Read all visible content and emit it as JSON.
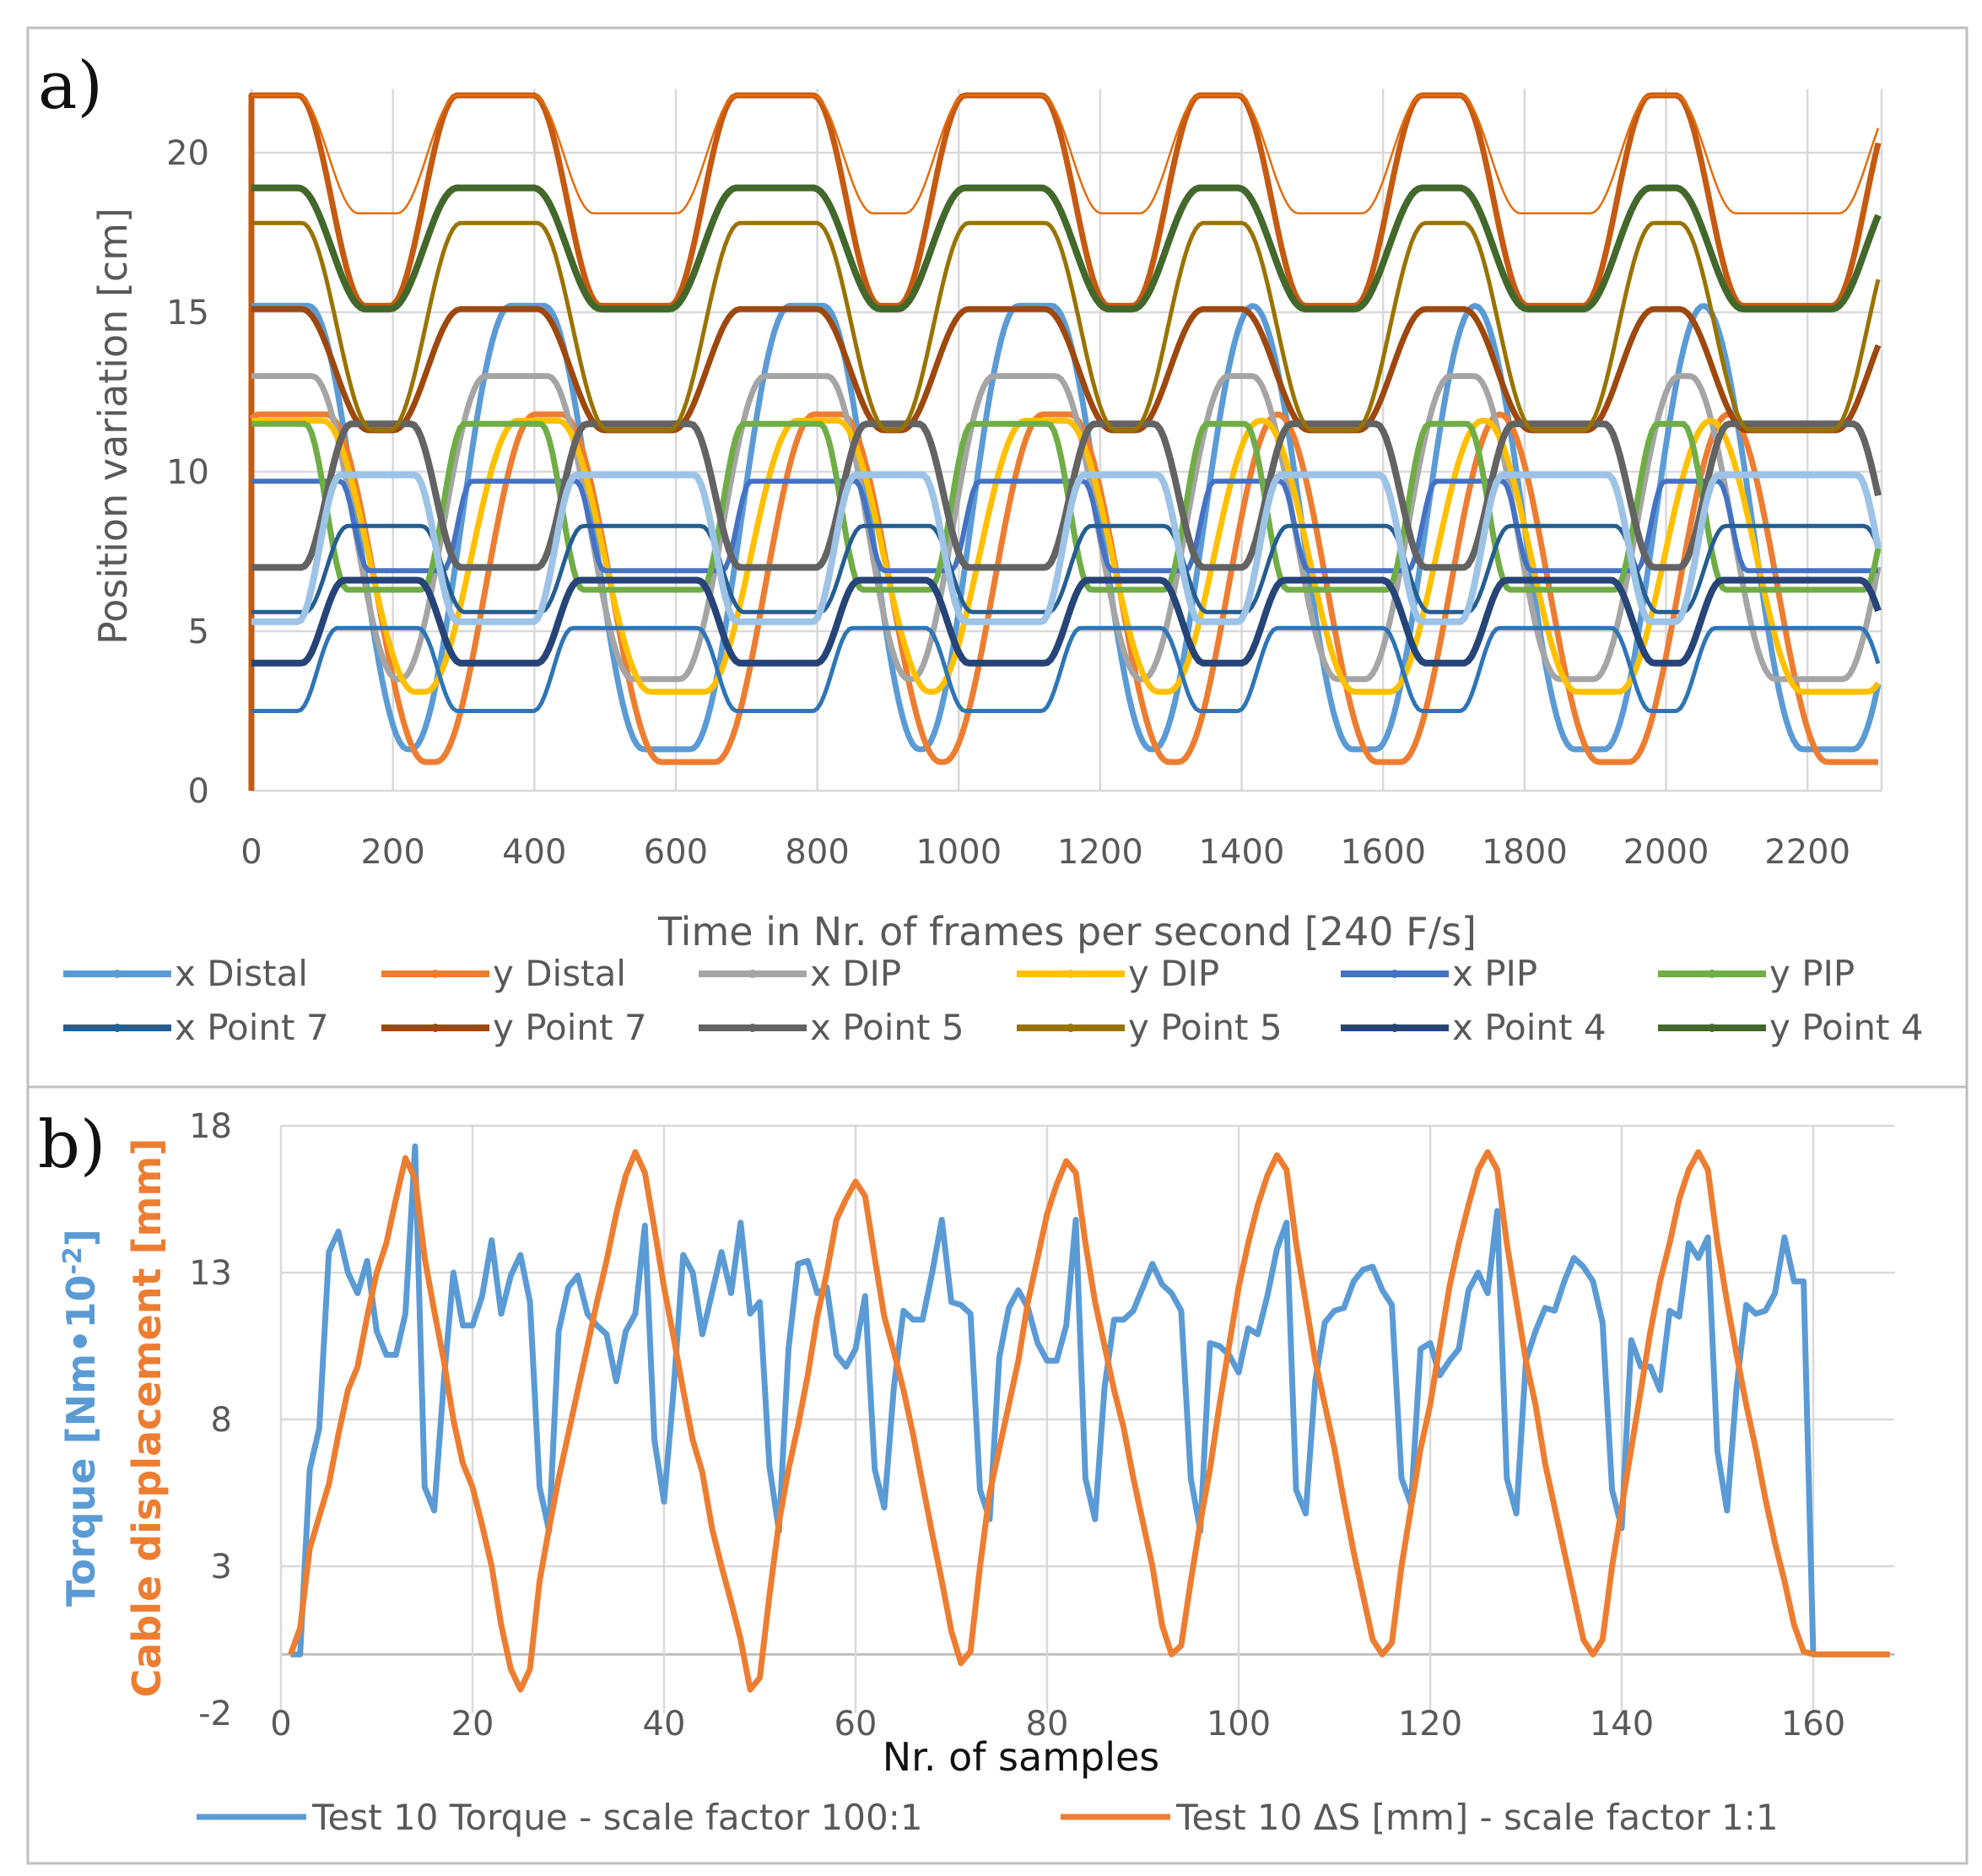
{
  "chart_data": [
    {
      "type": "line",
      "panel_label": "a)",
      "xlabel": "Time in Nr. of frames per second [240 F/s]",
      "ylabel": "Position variation [cm]",
      "xlim": [
        0,
        2300
      ],
      "ylim": [
        0,
        22
      ],
      "xticks": [
        "0",
        "200",
        "400",
        "600",
        "800",
        "1000",
        "1200",
        "1400",
        "1600",
        "1800",
        "2000",
        "2200"
      ],
      "yticks": [
        "0",
        "5",
        "10",
        "15",
        "20"
      ],
      "grid": true,
      "legend_position": "bottom",
      "high_windows_frames": [
        [
          -100,
          66
        ],
        [
          291,
          399
        ],
        [
          686,
          794
        ],
        [
          1009,
          1117
        ],
        [
          1341,
          1395
        ],
        [
          1655,
          1709
        ],
        [
          1978,
          2014
        ],
        [
          2330,
          2450
        ]
      ],
      "series": [
        {
          "name": null,
          "color": "#C55A11",
          "high": 21.8,
          "low": 15.2,
          "phase": "in",
          "shift": 0,
          "ramp": 95,
          "shrink": 0,
          "width": 7,
          "from_zero": true
        },
        {
          "name": null,
          "color": "#E46C0A",
          "high": 21.8,
          "low": 18.1,
          "phase": "in",
          "shift": 0,
          "ramp": 85,
          "shrink": 0,
          "width": 2.5
        },
        {
          "name": "x Distal",
          "color": "#5B9BD5",
          "high": 15.2,
          "low": 1.3,
          "phase": "in",
          "shift": 45,
          "ramp": 140,
          "shrink": 30,
          "width": 7
        },
        {
          "name": "y Distal",
          "color": "#ED7D31",
          "high": 11.8,
          "low": 0.9,
          "phase": "in",
          "shift": 75,
          "ramp": 140,
          "shrink": 35,
          "width": 7
        },
        {
          "name": "x DIP",
          "color": "#A5A5A5",
          "high": 13.0,
          "low": 3.5,
          "phase": "in",
          "shift": 30,
          "ramp": 120,
          "shrink": 10,
          "width": 7
        },
        {
          "name": "y DIP",
          "color": "#FFC000",
          "high": 11.6,
          "low": 3.1,
          "phase": "in",
          "shift": 60,
          "ramp": 130,
          "shrink": 25,
          "width": 7
        },
        {
          "name": "x PIP",
          "color": "#4472C4",
          "high": 9.7,
          "low": 6.9,
          "phase": "in",
          "shift": 40,
          "ramp": 40,
          "shrink": -20,
          "width": 6
        },
        {
          "name": "y PIP",
          "color": "#70AD47",
          "high": 11.5,
          "low": 6.3,
          "phase": "in",
          "shift": 10,
          "ramp": 60,
          "shrink": 0,
          "width": 7
        },
        {
          "name": "x Point 7",
          "color": "#255E91",
          "high": 8.3,
          "low": 5.6,
          "phase": "anti",
          "shift": 10,
          "ramp": 60,
          "shrink": 0,
          "width": 5
        },
        {
          "name": "y Point 7",
          "color": "#9E480E",
          "high": 15.1,
          "low": 11.3,
          "phase": "in",
          "shift": 5,
          "ramp": 95,
          "shrink": 0,
          "width": 7
        },
        {
          "name": "x Point 5",
          "color": "#636363",
          "high": 11.5,
          "low": 7.0,
          "phase": "anti",
          "shift": 5,
          "ramp": 70,
          "shrink": 0,
          "width": 8
        },
        {
          "name": "y Point 5",
          "color": "#997300",
          "high": 17.8,
          "low": 11.3,
          "phase": "in",
          "shift": 5,
          "ramp": 100,
          "shrink": 0,
          "width": 5
        },
        {
          "name": "x Point 4",
          "color": "#264478",
          "high": 6.6,
          "low": 4.0,
          "phase": "anti",
          "shift": 5,
          "ramp": 60,
          "shrink": 0,
          "width": 8
        },
        {
          "name": "y Point 4",
          "color": "#43682B",
          "high": 18.9,
          "low": 15.1,
          "phase": "in",
          "shift": 0,
          "ramp": 95,
          "shrink": 0,
          "width": 8
        },
        {
          "name": null,
          "color": "#9DC3E6",
          "high": 9.9,
          "low": 5.3,
          "phase": "anti",
          "shift": 0,
          "ramp": 60,
          "shrink": 0,
          "width": 8
        },
        {
          "name": null,
          "color": "#2E75B6",
          "high": 5.1,
          "low": 2.5,
          "phase": "anti",
          "shift": 0,
          "ramp": 55,
          "shrink": 0,
          "width": 5
        }
      ],
      "legend": [
        {
          "label": "x Distal",
          "color": "#5B9BD5"
        },
        {
          "label": "y Distal",
          "color": "#ED7D31"
        },
        {
          "label": "x DIP",
          "color": "#A5A5A5"
        },
        {
          "label": "y DIP",
          "color": "#FFC000"
        },
        {
          "label": "x PIP",
          "color": "#4472C4"
        },
        {
          "label": "y PIP",
          "color": "#70AD47"
        },
        {
          "label": "x Point 7",
          "color": "#255E91"
        },
        {
          "label": "y Point 7",
          "color": "#9E480E"
        },
        {
          "label": "x Point 5",
          "color": "#636363"
        },
        {
          "label": "y Point 5",
          "color": "#997300"
        },
        {
          "label": "x Point 4",
          "color": "#264478"
        },
        {
          "label": "y Point 4",
          "color": "#43682B"
        }
      ]
    },
    {
      "type": "line",
      "panel_label": "b)",
      "xlabel": "Nr. of samples",
      "ylabel_torque": "Torque [Nm•10",
      "ylabel_torque_exp": "-2",
      "ylabel_torque_end": "]",
      "ylabel_cable": "Cable displacement [mm]",
      "xlim": [
        0,
        168.5
      ],
      "ylim": [
        -2,
        18
      ],
      "xticks": [
        "0",
        "20",
        "40",
        "60",
        "80",
        "100",
        "120",
        "140",
        "160"
      ],
      "yticks": [
        "-2",
        "3",
        "8",
        "13",
        "18"
      ],
      "grid": true,
      "legend_position": "bottom",
      "series": [
        {
          "name": "Test 10 Torque - scale factor 100:1",
          "color": "#5B9BD5",
          "x_start": 1,
          "values": [
            0,
            0,
            6.3,
            7.7,
            13.7,
            14.4,
            13,
            12.3,
            13.4,
            11,
            10.2,
            10.2,
            11.6,
            17.3,
            5.7,
            4.9,
            9.3,
            13,
            11.2,
            11.2,
            12.2,
            14.1,
            11.6,
            12.9,
            13.6,
            12,
            5.7,
            4.2,
            11,
            12.5,
            12.9,
            11.6,
            11.2,
            10.9,
            9.3,
            11,
            11.6,
            14.6,
            7.3,
            5.2,
            9,
            13.6,
            13,
            10.9,
            12.3,
            13.7,
            12.3,
            14.7,
            11.6,
            12,
            6.4,
            4.2,
            10.4,
            13.3,
            13.4,
            12.3,
            12.5,
            10.2,
            9.8,
            10.4,
            12.2,
            6.3,
            5,
            9.1,
            11.7,
            11.4,
            11.4,
            13,
            14.8,
            12,
            11.9,
            11.6,
            5.6,
            4.6,
            10.1,
            11.8,
            12.4,
            11.8,
            10.6,
            10,
            10,
            11.2,
            14.8,
            6,
            4.6,
            9.1,
            11.4,
            11.4,
            11.7,
            12.5,
            13.3,
            12.6,
            12.3,
            11.7,
            6,
            4.2,
            10.6,
            10.5,
            10.2,
            9.6,
            11.1,
            10.9,
            12.2,
            13.8,
            14.7,
            5.6,
            4.8,
            9.3,
            11.3,
            11.7,
            11.8,
            12.7,
            13.1,
            13.2,
            12.4,
            11.9,
            6,
            5.1,
            10.4,
            10.6,
            9.5,
            10,
            10.4,
            12.4,
            13,
            12.3,
            15.1,
            6,
            4.8,
            10,
            11,
            11.8,
            11.7,
            12.7,
            13.5,
            13.2,
            12.7,
            11.3,
            5.6,
            4.3,
            10.7,
            9.8,
            9.8,
            9,
            11.7,
            11.5,
            14,
            13.5,
            14.2,
            6.9,
            4.9,
            9.1,
            11.9,
            11.6,
            11.7,
            12.3,
            14.2,
            12.7,
            12.7,
            0
          ]
        },
        {
          "name": "Test 10 ΔS [mm] - scale factor 1:1",
          "color": "#ED7D31",
          "x_start": 1,
          "values": [
            0,
            0.9,
            3.6,
            4.7,
            5.8,
            7.5,
            9,
            9.8,
            11.5,
            13,
            14,
            15.5,
            16.9,
            16.2,
            13.5,
            11.7,
            10,
            8,
            6.5,
            5.7,
            4.4,
            3,
            1,
            -0.5,
            -1.2,
            -0.5,
            2.5,
            4.3,
            6,
            7.5,
            9,
            10.5,
            12,
            13.4,
            15,
            16.3,
            17.1,
            16.4,
            14.5,
            12.5,
            10.8,
            9,
            7.3,
            6.2,
            4.3,
            3,
            1.8,
            0.5,
            -1.2,
            -0.8,
            2,
            4.5,
            6.3,
            7.8,
            9.5,
            11.5,
            13,
            14.8,
            15.5,
            16.1,
            15.6,
            13.5,
            11.5,
            10.3,
            9,
            7.5,
            5.8,
            4.1,
            2.5,
            0.8,
            -0.3,
            0.1,
            3,
            5.5,
            7,
            8.5,
            10,
            12,
            13.5,
            15,
            16,
            16.8,
            16.4,
            14,
            12,
            10.5,
            9,
            7.7,
            6,
            4.5,
            3,
            1,
            0,
            0.3,
            2.5,
            4.5,
            6.3,
            8.5,
            10.5,
            12.5,
            14,
            15.3,
            16.3,
            17,
            16.5,
            14,
            12,
            10,
            8.5,
            7,
            5.2,
            3.5,
            2,
            0.5,
            0,
            0.4,
            3,
            5,
            7,
            8.5,
            10.5,
            12.5,
            14,
            15.3,
            16.5,
            17.1,
            16.5,
            14,
            12,
            10,
            8.5,
            6.5,
            5,
            3.5,
            2,
            0.5,
            0,
            0.5,
            3,
            5,
            7,
            9,
            11,
            12.7,
            14,
            15.5,
            16.5,
            17.1,
            16.5,
            14,
            12,
            10.2,
            8.5,
            7,
            5.3,
            3.8,
            2.5,
            1,
            0.1,
            0,
            0,
            0,
            0,
            0,
            0,
            0,
            0,
            0
          ]
        }
      ]
    }
  ]
}
